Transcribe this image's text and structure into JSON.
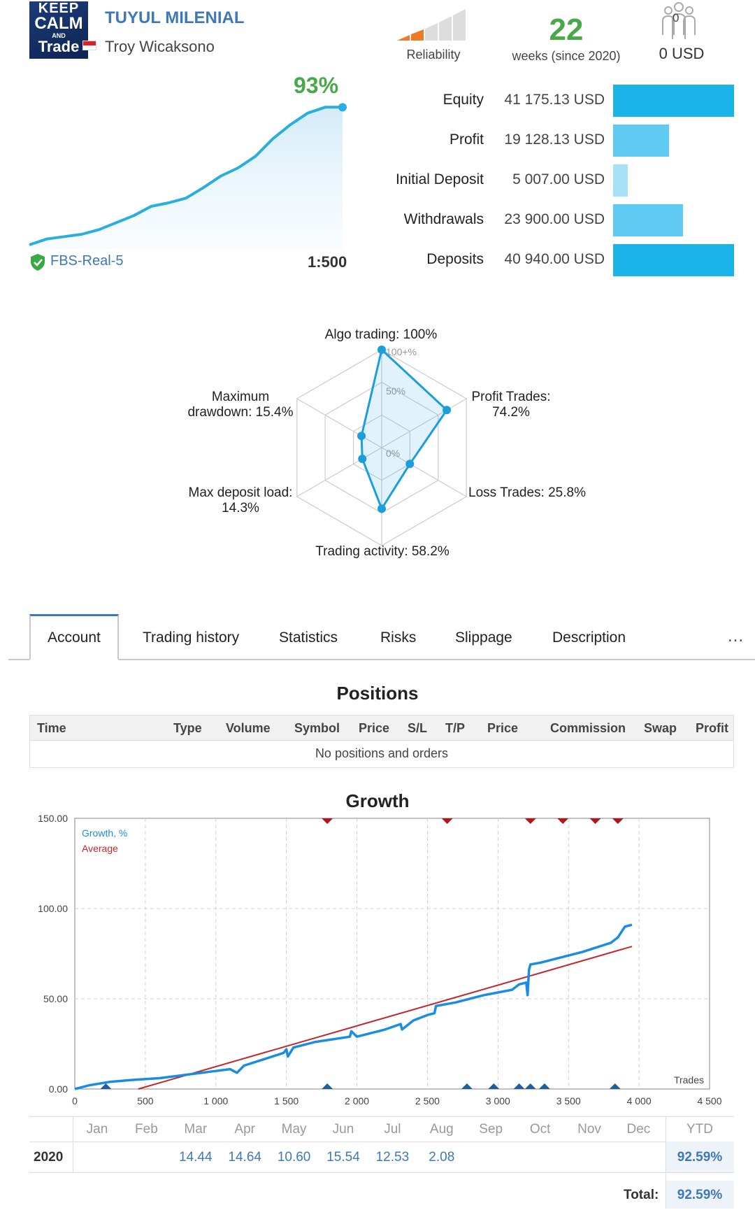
{
  "header": {
    "avatar_text": [
      "KEEP",
      "CALM",
      "AND",
      "Trade"
    ],
    "signal_name": "TUYUL MILENIAL",
    "author": "Troy Wicaksono",
    "reliability_label": "Reliability",
    "weeks_value": "22",
    "weeks_label": "weeks (since 2020)",
    "subscribers_count": "0",
    "subscribers_value": "0 USD",
    "icons": [
      "flag-indonesia-icon",
      "reliability-bars-icon",
      "subscribers-icon"
    ]
  },
  "summary": {
    "gain": "93%",
    "server": "FBS-Real-5",
    "leverage": "1:500",
    "growth_curve": [
      0,
      5,
      7,
      9,
      13,
      19,
      25,
      33,
      36,
      40,
      49,
      59,
      66,
      76,
      91,
      103,
      113,
      118,
      118
    ],
    "stats": [
      {
        "label": "Equity",
        "value": "41 175.13 USD",
        "share": 1.0,
        "color": "#1ab4e8"
      },
      {
        "label": "Profit",
        "value": "19 128.13 USD",
        "share": 0.465,
        "color": "#5fcaf2"
      },
      {
        "label": "Initial Deposit",
        "value": "5 007.00 USD",
        "share": 0.122,
        "color": "#a6e1f7"
      },
      {
        "label": "Withdrawals",
        "value": "23 900.00 USD",
        "share": 0.58,
        "color": "#5fcaf2"
      },
      {
        "label": "Deposits",
        "value": "40 940.00 USD",
        "share": 1.0,
        "color": "#1ab4e8"
      }
    ],
    "reliability_colors": [
      "#f07a2a",
      "#f07a2a",
      "#dddddd",
      "#dddddd",
      "#dddddd"
    ]
  },
  "radar": {
    "grid_labels": [
      "100+%",
      "50%",
      "0%"
    ],
    "axes": [
      {
        "label": "Algo trading: 100%",
        "value": 100
      },
      {
        "label": "Profit Trades:\n74.2%",
        "value": 74.2
      },
      {
        "label": "Loss Trades: 25.8%",
        "value": 25.8
      },
      {
        "label": "Trading activity: 58.2%",
        "value": 58.2
      },
      {
        "label": "Max deposit load:\n14.3%",
        "value": 14.3
      },
      {
        "label": "Maximum\ndrawdown: 15.4%",
        "value": 15.4
      }
    ]
  },
  "tabs": [
    "Account",
    "Trading history",
    "Statistics",
    "Risks",
    "Slippage",
    "Description"
  ],
  "tabs_more": "...",
  "positions": {
    "title": "Positions",
    "columns": [
      "Time",
      "Type",
      "Volume",
      "Symbol",
      "Price",
      "S/L",
      "T/P",
      "Price",
      "Commission",
      "Swap",
      "Profit"
    ],
    "empty_text": "No positions and orders"
  },
  "chart_data": {
    "type": "line",
    "title": "Growth",
    "x_ticks": [
      "0",
      "500",
      "1 000",
      "1 500",
      "2 000",
      "2 500",
      "3 000",
      "3 500",
      "4 000",
      "4 500"
    ],
    "y_ticks": [
      "0.00",
      "50.00",
      "100.00",
      "150.00"
    ],
    "xlim": [
      0,
      4500
    ],
    "ylim": [
      0,
      150
    ],
    "xlabel": "Trades",
    "grid": true,
    "legend_position": "top-left",
    "series": [
      {
        "name": "Growth, %",
        "color": "#1a8de0",
        "x": [
          0,
          100,
          250,
          400,
          600,
          800,
          1000,
          1100,
          1150,
          1200,
          1400,
          1480,
          1500,
          1510,
          1550,
          1700,
          1950,
          1960,
          2000,
          2200,
          2310,
          2320,
          2400,
          2500,
          2550,
          2560,
          2700,
          2900,
          3100,
          3150,
          3200,
          3210,
          3220,
          3230,
          3300,
          3450,
          3600,
          3800,
          3850,
          3900,
          3950
        ],
        "values": [
          0,
          2,
          4,
          5,
          6,
          8,
          10,
          11,
          9,
          13,
          18,
          20,
          22,
          18,
          23,
          26,
          29,
          32,
          29,
          33,
          36,
          33,
          38,
          41,
          42,
          46,
          48,
          52,
          55,
          58,
          59,
          52,
          66,
          69,
          70,
          73,
          76,
          81,
          84,
          90,
          91
        ]
      },
      {
        "name": "Average",
        "color": "#c0282d",
        "x": [
          450,
          3950
        ],
        "values": [
          0,
          79
        ]
      }
    ],
    "markers_top_x": [
      1790,
      2640,
      3230,
      3460,
      3690,
      3850
    ],
    "markers_bottom_x": [
      220,
      1790,
      2780,
      2970,
      3150,
      3230,
      3330,
      3830
    ]
  },
  "monthly": {
    "months": [
      "Jan",
      "Feb",
      "Mar",
      "Apr",
      "May",
      "Jun",
      "Jul",
      "Aug",
      "Sep",
      "Oct",
      "Nov",
      "Dec"
    ],
    "ytd_label": "YTD",
    "year": "2020",
    "values": [
      "",
      "",
      "14.44",
      "14.64",
      "10.60",
      "15.54",
      "12.53",
      "2.08",
      "",
      "",
      "",
      ""
    ],
    "ytd": "92.59%",
    "total_label": "Total:",
    "total": "92.59%"
  }
}
